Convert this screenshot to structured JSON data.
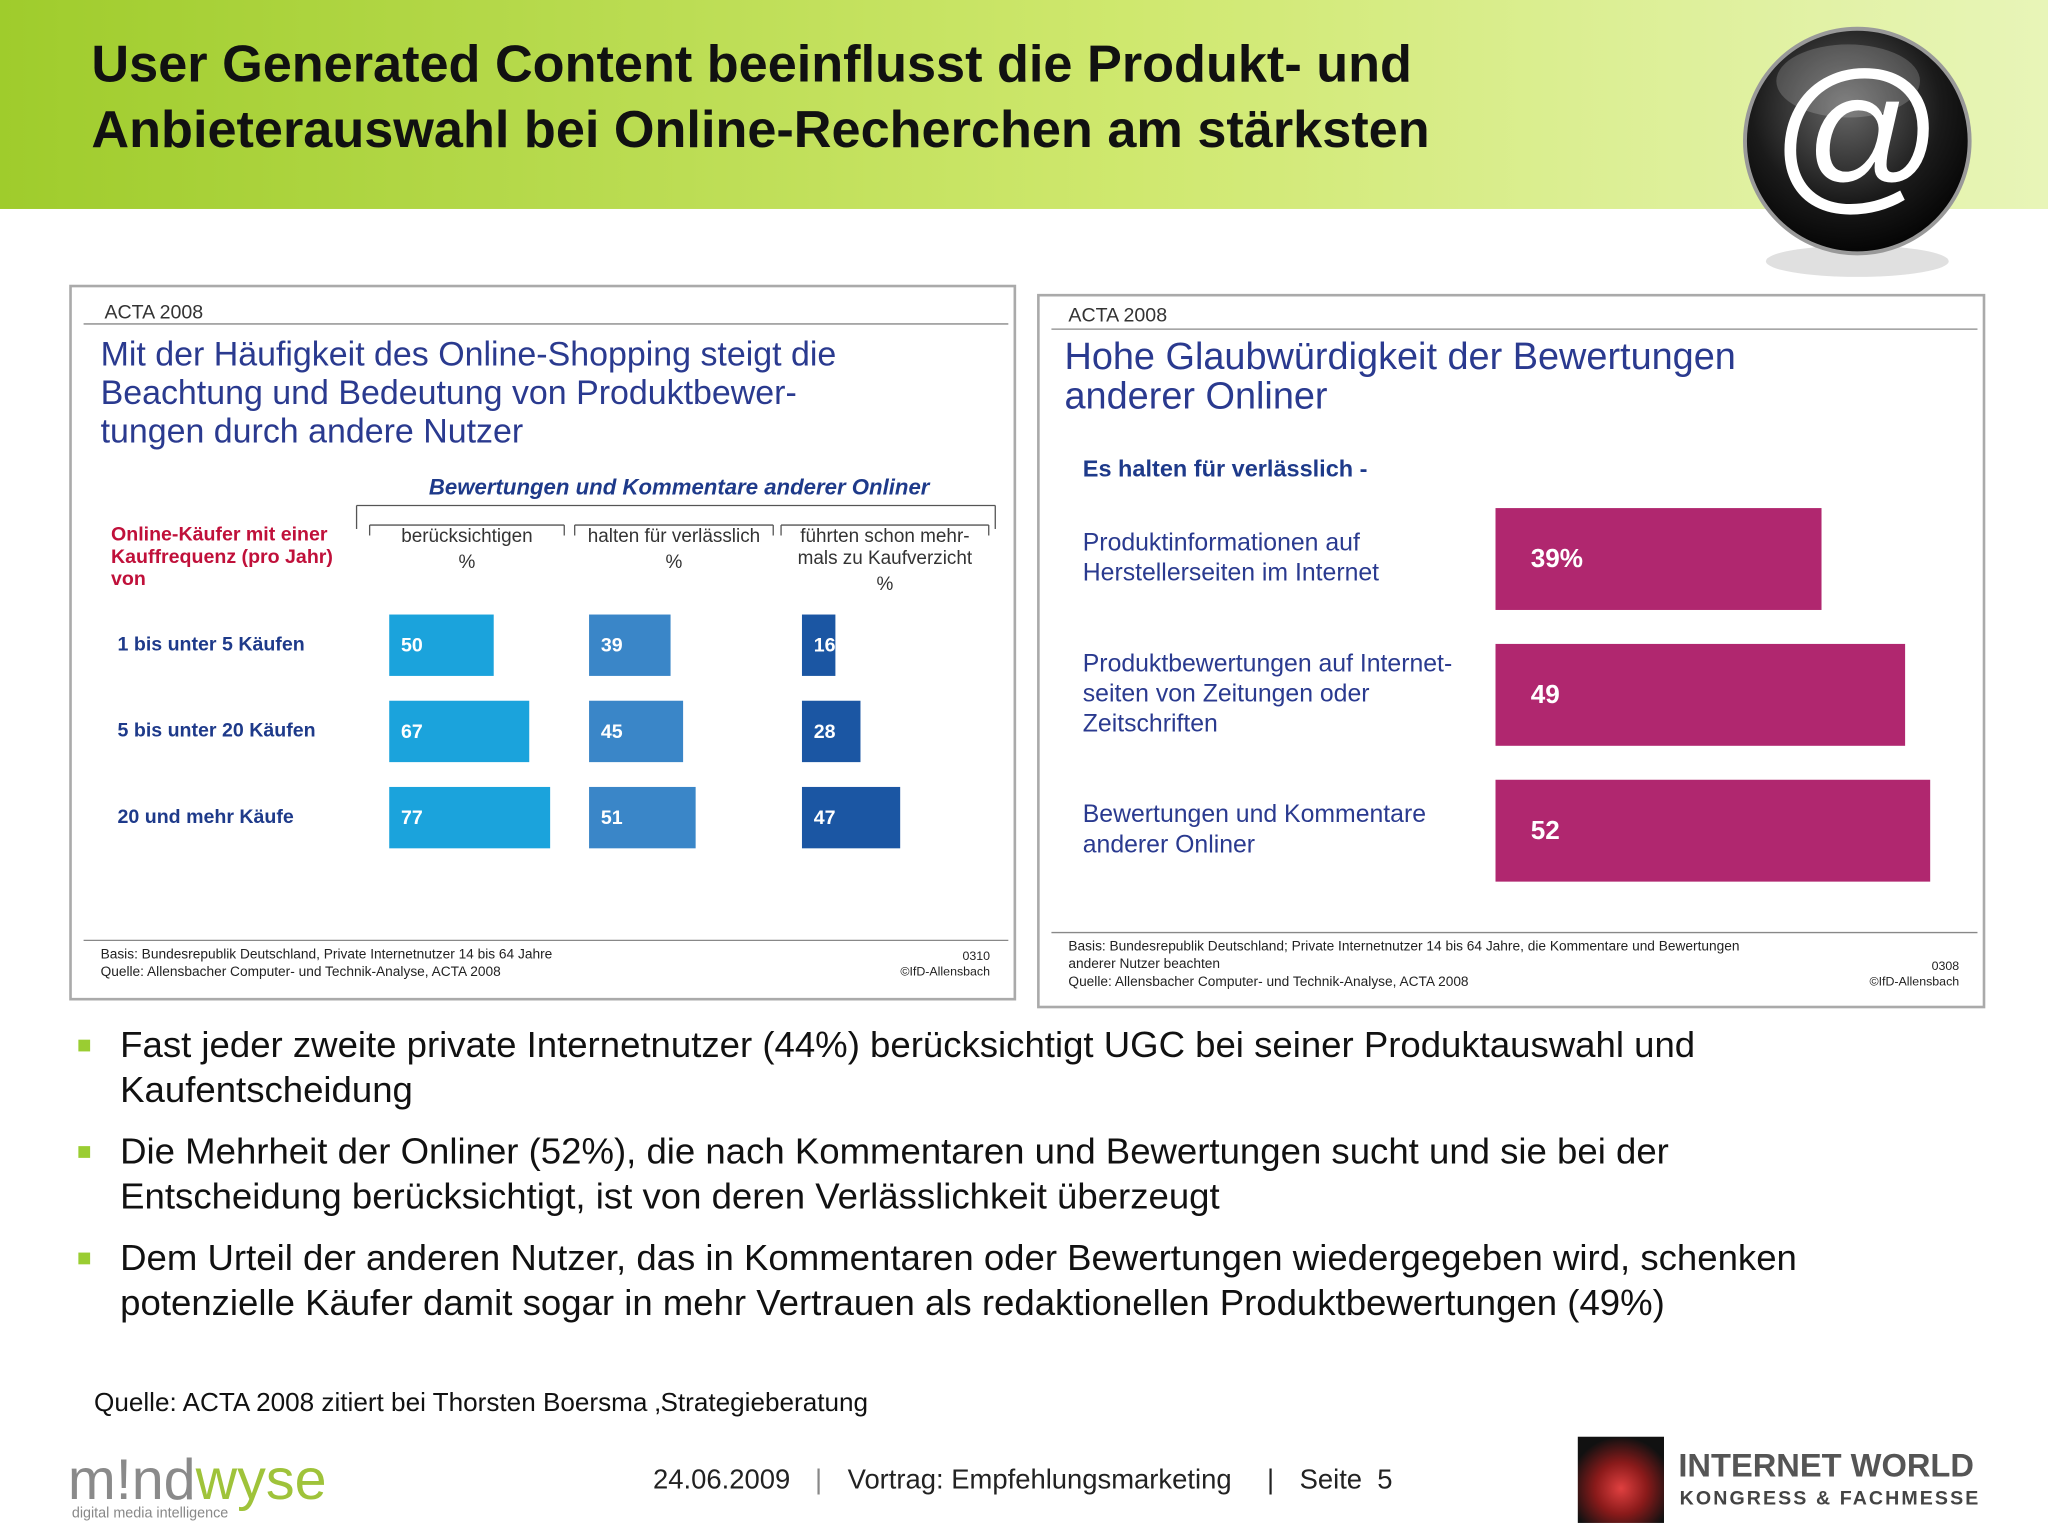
{
  "header": {
    "title": [
      "User Generated Content beeinflusst die Produkt- und",
      "Anbieterauswahl bei Online-Recherchen am stärksten"
    ]
  },
  "chart_data": [
    {
      "type": "bar",
      "source": "ACTA 2008",
      "title": [
        "Mit der Häufigkeit des Online-Shopping steigt die",
        "Beachtung und Bedeutung von Produktbewer-",
        "tungen durch andere Nutzer"
      ],
      "group_label": "Bewertungen und Kommentare anderer Onliner",
      "row_label": [
        "Online-Käufer mit einer",
        "Kauffrequenz (pro Jahr)",
        "von"
      ],
      "categories": [
        "1 bis unter 5 Käufen",
        "5 bis unter 20 Käufen",
        "20 und mehr Käufe"
      ],
      "series": [
        {
          "name": [
            "berücksichtigen"
          ],
          "unit": "%",
          "color": "#1ba3dc",
          "values": [
            50,
            67,
            77
          ]
        },
        {
          "name": [
            "halten für verlässlich"
          ],
          "unit": "%",
          "color": "#3a86c8",
          "values": [
            39,
            45,
            51
          ]
        },
        {
          "name": [
            "führten schon mehr-",
            "mals zu Kaufverzicht"
          ],
          "unit": "%",
          "color": "#1b56a3",
          "values": [
            16,
            28,
            47
          ]
        }
      ],
      "basis": [
        "Basis: Bundesrepublik Deutschland, Private Internetnutzer 14 bis 64 Jahre",
        "Quelle: Allensbacher Computer- und Technik-Analyse, ACTA 2008"
      ],
      "code": "0310",
      "copyright": "©IfD-Allensbach"
    },
    {
      "type": "bar",
      "source": "ACTA 2008",
      "title": [
        "Hohe Glaubwürdigkeit der Bewertungen",
        "anderer Onliner"
      ],
      "subtitle": "Es halten für verlässlich -",
      "categories": [
        [
          "Produktinformationen auf",
          "Herstellerseiten im Internet"
        ],
        [
          "Produktbewertungen auf Internet-",
          "seiten von Zeitungen oder",
          "Zeitschriften"
        ],
        [
          "Bewertungen und Kommentare",
          "anderer Onliner"
        ]
      ],
      "values": [
        39,
        49,
        52
      ],
      "value_labels": [
        "39%",
        "49",
        "52"
      ],
      "color": "#b0276f",
      "basis": [
        "Basis: Bundesrepublik Deutschland; Private Internetnutzer 14 bis 64 Jahre, die Kommentare und Bewertungen",
        "anderer Nutzer beachten",
        "Quelle: Allensbacher Computer- und Technik-Analyse, ACTA 2008"
      ],
      "code": "0308",
      "copyright": "©IfD-Allensbach"
    }
  ],
  "bullets": [
    [
      "Fast jeder zweite private Internetnutzer (44%) berücksichtigt UGC bei seiner Produktauswahl und",
      "Kaufentscheidung"
    ],
    [
      "Die Mehrheit der Onliner (52%), die nach Kommentaren und Bewertungen sucht und sie bei der",
      "Entscheidung berücksichtigt, ist von deren Verlässlichkeit überzeugt"
    ],
    [
      "Dem Urteil der anderen Nutzer, das in Kommentaren oder Bewertungen wiedergegeben wird, schenken",
      "potenzielle Käufer damit sogar in mehr Vertrauen als redaktionellen Produktbewertungen (49%)"
    ]
  ],
  "source_note": "Quelle: ACTA 2008 zitiert bei Thorsten Boersma ‚Strategieberatung",
  "footer": {
    "date": "24.06.2009",
    "separator": "|",
    "talk": "Vortrag: Empfehlungsmarketing",
    "page": "Seite  5",
    "logo": [
      "m!nd",
      "wyse"
    ],
    "logo_tagline": "digital media intelligence",
    "partner": [
      "INTERNET WORLD",
      "KONGRESS & FACHMESSE"
    ],
    "icon": "@"
  }
}
